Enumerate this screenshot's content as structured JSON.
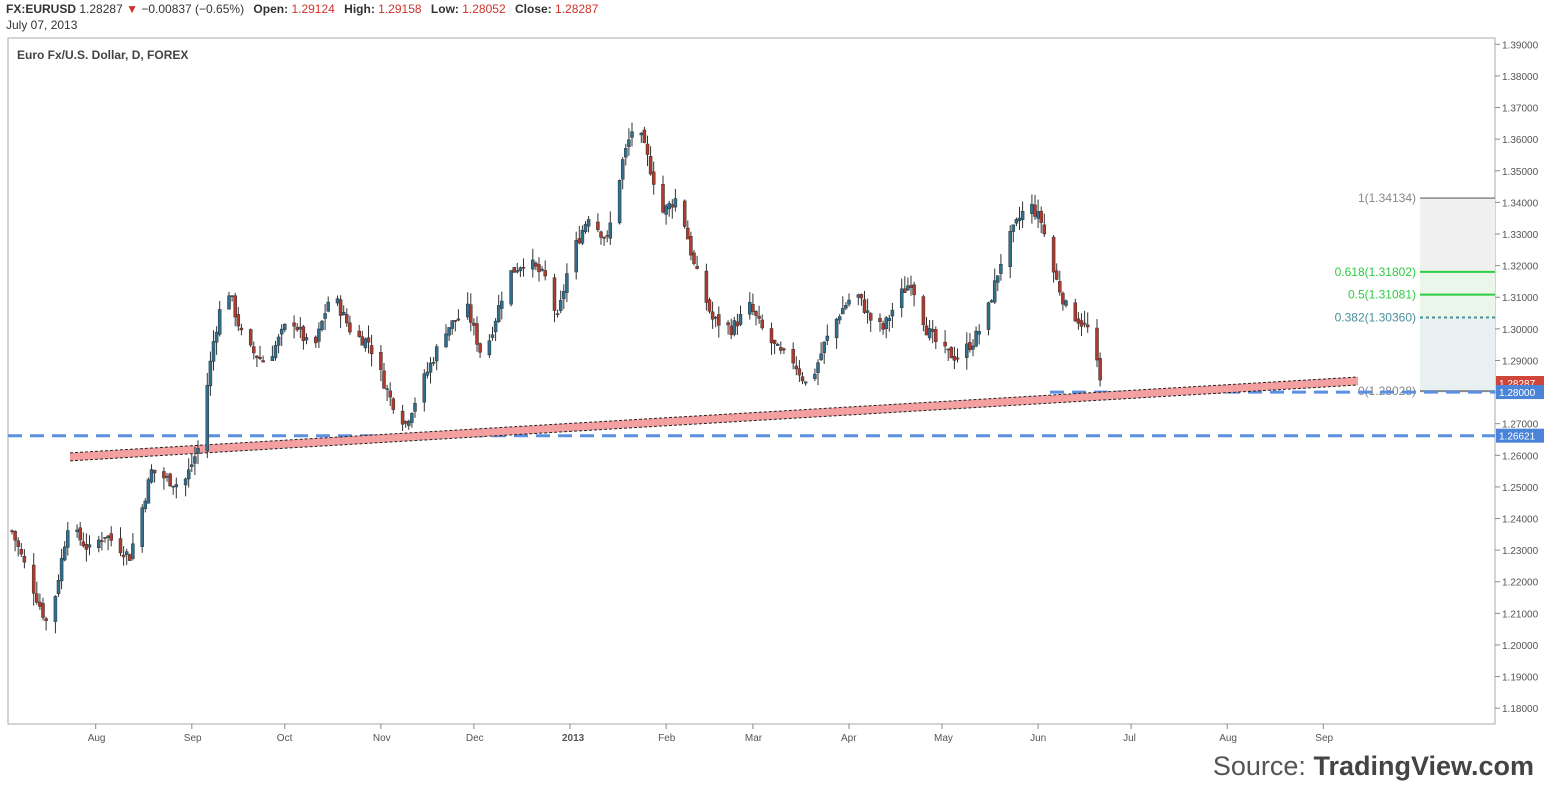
{
  "header": {
    "symbol": "FX:EURUSD",
    "last": "1.28287",
    "arrow": "▼",
    "change": "−0.00837 (−0.65%)",
    "open_label": "Open:",
    "open": "1.29124",
    "high_label": "High:",
    "high": "1.29158",
    "low_label": "Low:",
    "low": "1.28052",
    "close_label": "Close:",
    "close": "1.28287",
    "date": "July 07, 2013"
  },
  "chart_title": "Euro Fx/U.S. Dollar, D, FOREX",
  "source": {
    "prefix": "Source: ",
    "brand": "TradingView.com"
  },
  "colors": {
    "up": "#2e6f8e",
    "down": "#b03a2e",
    "axis": "#888888",
    "hline": "#5b8fe0",
    "channel": "#f5a0a0"
  },
  "chart_data": {
    "type": "candlestick",
    "title": "Euro Fx/U.S. Dollar, D, FOREX",
    "ylim": [
      1.175,
      1.392
    ],
    "y_ticks": [
      "1.18000",
      "1.19000",
      "1.20000",
      "1.21000",
      "1.22000",
      "1.23000",
      "1.24000",
      "1.25000",
      "1.26000",
      "1.27000",
      "1.28000",
      "1.29000",
      "1.30000",
      "1.31000",
      "1.32000",
      "1.33000",
      "1.34000",
      "1.35000",
      "1.36000",
      "1.37000",
      "1.38000",
      "1.39000"
    ],
    "x_labels": [
      "Aug",
      "Sep",
      "Oct",
      "Nov",
      "Dec",
      "2013",
      "Feb",
      "Mar",
      "Apr",
      "May",
      "Jun",
      "Jul",
      "Aug",
      "Sep"
    ],
    "price_path": [
      [
        0,
        1.236
      ],
      [
        8,
        1.215
      ],
      [
        12,
        1.205
      ],
      [
        18,
        1.238
      ],
      [
        25,
        1.23
      ],
      [
        30,
        1.235
      ],
      [
        38,
        1.228
      ],
      [
        45,
        1.255
      ],
      [
        55,
        1.25
      ],
      [
        60,
        1.262
      ],
      [
        65,
        1.296
      ],
      [
        69,
        1.315
      ],
      [
        75,
        1.295
      ],
      [
        82,
        1.289
      ],
      [
        90,
        1.304
      ],
      [
        97,
        1.292
      ],
      [
        103,
        1.312
      ],
      [
        110,
        1.298
      ],
      [
        115,
        1.296
      ],
      [
        122,
        1.278
      ],
      [
        127,
        1.27
      ],
      [
        132,
        1.282
      ],
      [
        140,
        1.3
      ],
      [
        147,
        1.306
      ],
      [
        152,
        1.29
      ],
      [
        160,
        1.317
      ],
      [
        166,
        1.322
      ],
      [
        172,
        1.316
      ],
      [
        176,
        1.303
      ],
      [
        180,
        1.322
      ],
      [
        186,
        1.336
      ],
      [
        192,
        1.328
      ],
      [
        197,
        1.353
      ],
      [
        201,
        1.366
      ],
      [
        205,
        1.354
      ],
      [
        210,
        1.337
      ],
      [
        215,
        1.342
      ],
      [
        220,
        1.32
      ],
      [
        226,
        1.303
      ],
      [
        232,
        1.3
      ],
      [
        238,
        1.307
      ],
      [
        243,
        1.298
      ],
      [
        248,
        1.292
      ],
      [
        252,
        1.29
      ],
      [
        257,
        1.281
      ],
      [
        262,
        1.295
      ],
      [
        267,
        1.305
      ],
      [
        272,
        1.312
      ],
      [
        277,
        1.303
      ],
      [
        281,
        1.3
      ],
      [
        286,
        1.31
      ],
      [
        290,
        1.315
      ],
      [
        295,
        1.3
      ],
      [
        300,
        1.293
      ],
      [
        305,
        1.291
      ],
      [
        310,
        1.296
      ],
      [
        314,
        1.303
      ],
      [
        320,
        1.325
      ],
      [
        325,
        1.335
      ],
      [
        328,
        1.34
      ],
      [
        332,
        1.334
      ],
      [
        336,
        1.318
      ],
      [
        340,
        1.307
      ],
      [
        344,
        1.303
      ],
      [
        348,
        1.299
      ],
      [
        351,
        1.283
      ]
    ],
    "trendline_start": {
      "date_index": 3,
      "value": 1.2595
    },
    "trendline_end": {
      "date_index": 364,
      "value": 1.2835
    },
    "horizontal_levels": [
      1.2662,
      1.28
    ],
    "price_labels": {
      "last": "1.28287",
      "level_1": "1.28000",
      "level_2": "1.26621"
    },
    "fib_levels": [
      {
        "label": "1(1.34134)",
        "value": 1.34134,
        "color": "#888888"
      },
      {
        "label": "0.618(1.31802)",
        "value": 1.31802,
        "color": "#2ecc40"
      },
      {
        "label": "0.5(1.31081)",
        "value": 1.31081,
        "color": "#2ecc40"
      },
      {
        "label": "0.382(1.30360)",
        "value": 1.3036,
        "color": "#4a8f9a"
      },
      {
        "label": "0(1.28028)",
        "value": 1.28028,
        "color": "#888888"
      }
    ]
  }
}
